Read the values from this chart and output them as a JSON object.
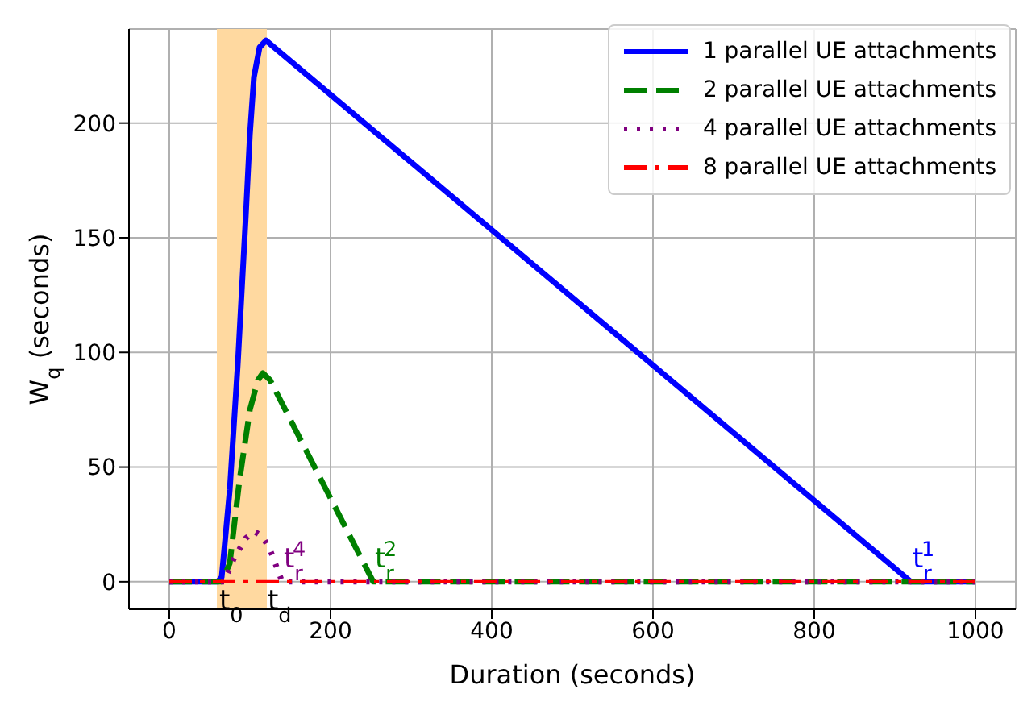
{
  "chart_data": {
    "type": "line",
    "xlabel": "Duration (seconds)",
    "ylabel": "W$_{q}$ (seconds)",
    "xlim": [
      -50,
      1050
    ],
    "ylim": [
      -12,
      241
    ],
    "xticks": [
      0,
      200,
      400,
      600,
      800,
      1000
    ],
    "yticks": [
      0,
      50,
      100,
      150,
      200
    ],
    "grid": true,
    "legend": "top right",
    "bands": [
      {
        "axis": "x",
        "from": 60,
        "to": 120,
        "color": "#ffd9a0"
      }
    ],
    "series": [
      {
        "name": "1 parallel UE attachments",
        "color": "#0000ff",
        "line_style": "solid",
        "x": [
          0,
          60,
          65,
          75,
          85,
          95,
          100,
          105,
          112,
          120,
          920,
          1000
        ],
        "values": [
          0,
          0,
          2,
          40,
          95,
          160,
          195,
          220,
          233,
          236,
          0,
          0
        ]
      },
      {
        "name": "2 parallel UE attachments",
        "color": "#008000",
        "line_style": "dashed",
        "x": [
          0,
          65,
          75,
          87,
          100,
          110,
          116,
          125,
          253,
          1000
        ],
        "values": [
          0,
          0,
          8,
          44,
          75,
          88,
          91,
          88,
          0,
          0
        ]
      },
      {
        "name": "4 parallel UE attachments",
        "color": "#800080",
        "line_style": "dotted",
        "x": [
          0,
          68,
          80,
          95,
          105,
          115,
          125,
          140,
          1000
        ],
        "values": [
          0,
          0,
          10,
          19,
          22,
          20,
          14,
          0,
          0
        ]
      },
      {
        "name": "8 parallel UE attachments",
        "color": "#ff0000",
        "line_style": "dashdot",
        "x": [
          0,
          1000
        ],
        "values": [
          0,
          0
        ]
      }
    ],
    "annotations": [
      {
        "text": "t$_{0}$",
        "x": 60,
        "y": 0
      },
      {
        "text": "t$_{d}$",
        "x": 120,
        "y": 0
      },
      {
        "text": "t$_{r}$$^{4}$",
        "x": 140,
        "y": 0
      },
      {
        "text": "t$_{r}$$^{2}$",
        "x": 253,
        "y": 0
      },
      {
        "text": "t$_{r}$$^{1}$",
        "x": 920,
        "y": 0
      }
    ]
  }
}
